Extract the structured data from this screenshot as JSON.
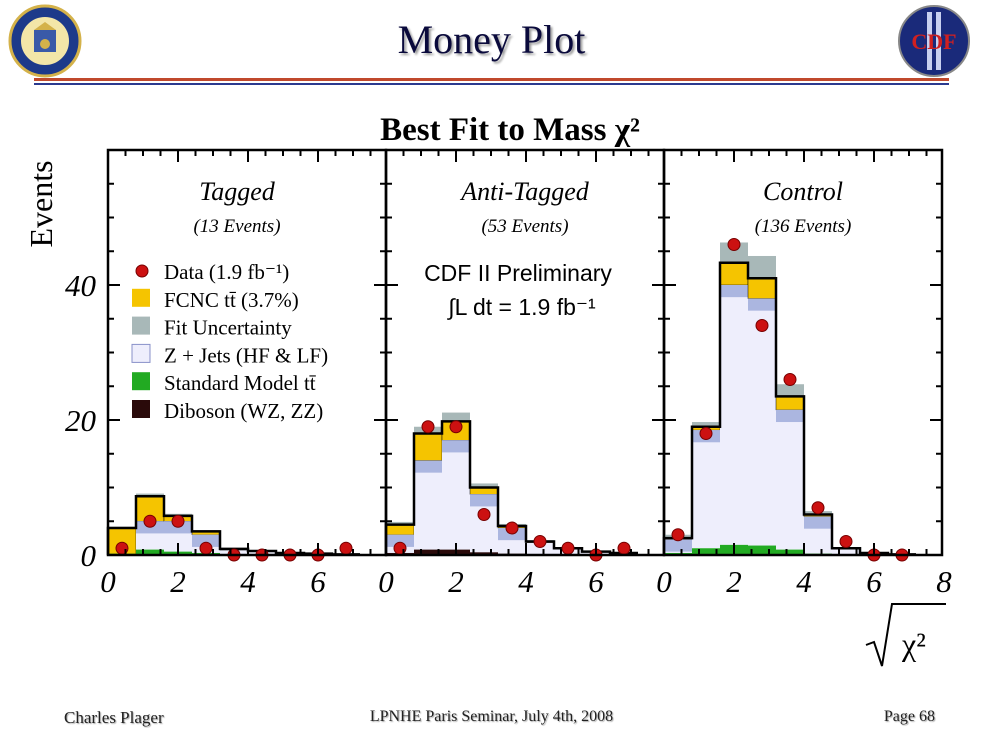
{
  "slide": {
    "title": "Money Plot",
    "footer_left": "Charles Plager",
    "footer_center": "LPNHE Paris Seminar, July 4th, 2008",
    "footer_right": "Page 68",
    "logo_right_text": "CDF"
  },
  "chart_data": {
    "type": "bar",
    "title": "Best Fit to Mass χ²",
    "ylabel": "Events",
    "xlabel": "√χ²",
    "ylim": [
      0,
      60
    ],
    "xlim": [
      0,
      8
    ],
    "y_ticks": [
      0,
      20,
      40
    ],
    "x_ticks": [
      0,
      2,
      4,
      6
    ],
    "x_ticks_last_panel": [
      0,
      2,
      4,
      6,
      8
    ],
    "bin_width": 0.8,
    "preliminary_text": "CDF II Preliminary",
    "luminosity_text": "∫L dt = 1.9 fb⁻¹",
    "legend": [
      {
        "label": "Data (1.9 fb⁻¹)",
        "color": "#cc1111",
        "kind": "point"
      },
      {
        "label": "FCNC tt̄ (3.7%)",
        "color": "#f5c400",
        "kind": "box"
      },
      {
        "label": "Fit Uncertainty",
        "color": "#a8b8b8",
        "kind": "box"
      },
      {
        "label": "Z + Jets (HF & LF)",
        "color": "#eeeefc",
        "kind": "box"
      },
      {
        "label": "Standard Model tt̄",
        "color": "#22aa22",
        "kind": "box"
      },
      {
        "label": "Diboson (WZ, ZZ)",
        "color": "#2a0a0a",
        "kind": "box"
      }
    ],
    "colors": {
      "fcnc": "#f5c400",
      "uncertainty": "#a8b8b8",
      "zjets": "#eeeefc",
      "zjets_edge": "#9aa8d8",
      "sm_ttbar": "#22aa22",
      "diboson": "#2a0a0a",
      "data": "#cc1111"
    },
    "panels": [
      {
        "name": "Tagged",
        "events_label": "(13 Events)",
        "total": [
          4.0,
          8.7,
          5.8,
          3.5,
          0.9,
          0.6,
          0.3,
          0.2,
          0.1
        ],
        "zjets": [
          0.0,
          5.0,
          5.0,
          3.0,
          0.7,
          0.5,
          0.3,
          0.2,
          0.1
        ],
        "sm_ttbar": [
          0.2,
          0.8,
          0.5,
          0.3,
          0.1,
          0.1,
          0.0,
          0.0,
          0.0
        ],
        "uncertainty": [
          0.2,
          0.4,
          0.3,
          0.2,
          0.1,
          0.1,
          0.0,
          0.0,
          0.0
        ],
        "data": [
          1,
          5,
          5,
          1,
          0,
          0,
          0,
          0,
          1
        ]
      },
      {
        "name": "Anti-Tagged",
        "events_label": "(53 Events)",
        "total": [
          4.5,
          18.0,
          19.8,
          10.0,
          4.3,
          2.0,
          1.0,
          0.5,
          0.3
        ],
        "zjets": [
          3.0,
          14.0,
          17.0,
          9.0,
          4.0,
          1.8,
          0.9,
          0.4,
          0.3
        ],
        "sm_ttbar": [
          0.3,
          0.8,
          0.8,
          0.4,
          0.2,
          0.1,
          0.0,
          0.0,
          0.0
        ],
        "uncertainty": [
          0.4,
          1.0,
          1.3,
          0.6,
          0.3,
          0.2,
          0.1,
          0.1,
          0.0
        ],
        "data": [
          1,
          19,
          19,
          6,
          4,
          2,
          1,
          0,
          1
        ]
      },
      {
        "name": "Control",
        "events_label": "(136 Events)",
        "total": [
          2.5,
          19.0,
          43.3,
          41.0,
          23.5,
          6.0,
          1.0,
          0.3,
          0.1
        ],
        "zjets": [
          2.3,
          18.5,
          40.0,
          38.0,
          21.5,
          5.7,
          0.9,
          0.3,
          0.1
        ],
        "sm_ttbar": [
          0.3,
          1.0,
          1.5,
          1.4,
          0.8,
          0.2,
          0.0,
          0.0,
          0.0
        ],
        "uncertainty": [
          0.5,
          0.7,
          3.0,
          3.3,
          1.8,
          0.5,
          0.1,
          0.0,
          0.0
        ],
        "data": [
          3,
          18,
          46,
          34,
          26,
          7,
          2,
          0,
          0
        ]
      }
    ]
  }
}
